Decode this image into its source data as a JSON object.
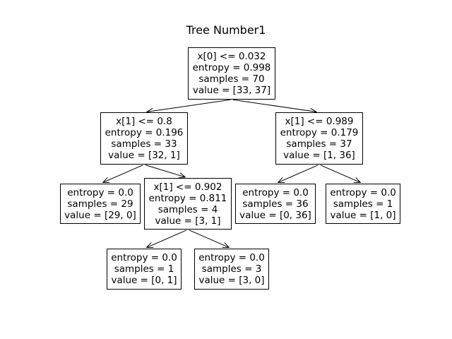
{
  "title": "Tree Number1",
  "nodes": [
    {
      "id": "n0",
      "lines": [
        "x[0] <= 0.032",
        "entropy = 0.998",
        "samples = 70",
        "value = [33, 37]"
      ]
    },
    {
      "id": "n1",
      "lines": [
        "x[1] <= 0.8",
        "entropy = 0.196",
        "samples = 33",
        "value = [32, 1]"
      ]
    },
    {
      "id": "n2",
      "lines": [
        "entropy = 0.0",
        "samples = 29",
        "value = [29, 0]"
      ]
    },
    {
      "id": "n3",
      "lines": [
        "x[1] <= 0.902",
        "entropy = 0.811",
        "samples = 4",
        "value = [3, 1]"
      ]
    },
    {
      "id": "n4",
      "lines": [
        "entropy = 0.0",
        "samples = 1",
        "value = [0, 1]"
      ]
    },
    {
      "id": "n5",
      "lines": [
        "entropy = 0.0",
        "samples = 3",
        "value = [3, 0]"
      ]
    },
    {
      "id": "n6",
      "lines": [
        "x[1] <= 0.989",
        "entropy = 0.179",
        "samples = 37",
        "value = [1, 36]"
      ]
    },
    {
      "id": "n7",
      "lines": [
        "entropy = 0.0",
        "samples = 36",
        "value = [0, 36]"
      ]
    },
    {
      "id": "n8",
      "lines": [
        "entropy = 0.0",
        "samples = 1",
        "value = [1, 0]"
      ]
    }
  ],
  "edges": [
    {
      "from": "n0",
      "to": "n1"
    },
    {
      "from": "n0",
      "to": "n6"
    },
    {
      "from": "n1",
      "to": "n2"
    },
    {
      "from": "n1",
      "to": "n3"
    },
    {
      "from": "n3",
      "to": "n4"
    },
    {
      "from": "n3",
      "to": "n5"
    },
    {
      "from": "n6",
      "to": "n7"
    },
    {
      "from": "n6",
      "to": "n8"
    }
  ]
}
